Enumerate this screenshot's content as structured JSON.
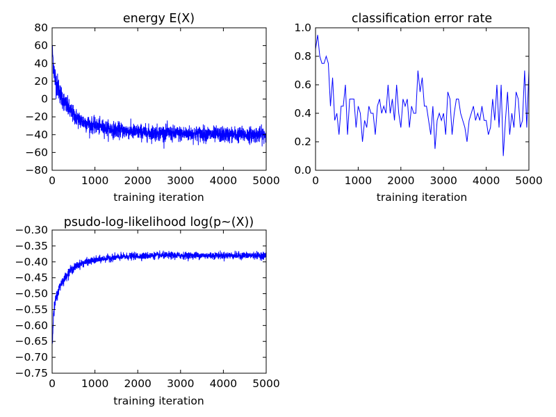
{
  "figure": {
    "line_color": "#0000ff",
    "background": "#ffffff"
  },
  "chart_data": [
    {
      "type": "line",
      "title": "energy E(X)",
      "xlabel": "training iteration",
      "ylabel": "",
      "xlim": [
        0,
        5000
      ],
      "ylim": [
        -80,
        80
      ],
      "xticks": [
        0,
        1000,
        2000,
        3000,
        4000,
        5000
      ],
      "yticks": [
        -80,
        -60,
        -40,
        -20,
        0,
        20,
        40,
        60,
        80
      ],
      "xtick_labels": [
        "0",
        "1000",
        "2000",
        "3000",
        "4000",
        "5000"
      ],
      "ytick_labels": [
        "−80",
        "−60",
        "−40",
        "−20",
        "0",
        "20",
        "40",
        "60",
        "80"
      ],
      "grid": false,
      "series": [
        {
          "color": "#0000ff",
          "x": [
            0,
            25,
            50,
            75,
            100,
            150,
            200,
            300,
            400,
            500,
            600,
            700,
            800,
            900,
            1000,
            1100,
            1200,
            1300,
            1400,
            1500,
            1600,
            1700,
            1800,
            1900,
            2000,
            2100,
            2200,
            2300,
            2400,
            2500,
            2600,
            2700,
            2800,
            2900,
            3000,
            3100,
            3200,
            3300,
            3400,
            3500,
            3600,
            3700,
            3800,
            3900,
            4000,
            4100,
            4200,
            4300,
            4400,
            4500,
            4600,
            4700,
            4800,
            4900,
            5000
          ],
          "y": [
            58,
            42,
            30,
            22,
            18,
            12,
            5,
            -5,
            -12,
            -18,
            -22,
            -25,
            -27,
            -29,
            -30,
            -31,
            -32,
            -33,
            -34,
            -35,
            -35,
            -36,
            -36,
            -37,
            -37,
            -37,
            -38,
            -38,
            -38,
            -38,
            -38,
            -38,
            -39,
            -39,
            -39,
            -39,
            -39,
            -39,
            -39,
            -39,
            -39,
            -40,
            -40,
            -40,
            -40,
            -40,
            -40,
            -40,
            -40,
            -40,
            -40,
            -40,
            -40,
            -40,
            -40
          ],
          "noise": [
            8,
            12,
            14,
            14,
            13,
            12,
            11,
            10,
            10,
            9,
            9,
            9,
            9,
            8,
            8,
            8,
            8,
            8,
            8,
            8,
            8,
            8,
            8,
            8,
            8,
            8,
            8,
            8,
            8,
            8,
            8,
            8,
            8,
            8,
            8,
            8,
            8,
            8,
            8,
            8,
            8,
            8,
            8,
            8,
            8,
            8,
            8,
            8,
            8,
            8,
            8,
            8,
            8,
            8,
            8
          ]
        }
      ]
    },
    {
      "type": "line",
      "title": "classification error rate",
      "xlabel": "training iteration",
      "ylabel": "",
      "xlim": [
        0,
        5000
      ],
      "ylim": [
        0.0,
        1.0
      ],
      "xticks": [
        0,
        1000,
        2000,
        3000,
        4000,
        5000
      ],
      "yticks": [
        0.0,
        0.2,
        0.4,
        0.6,
        0.8,
        1.0
      ],
      "xtick_labels": [
        "0",
        "1000",
        "2000",
        "3000",
        "4000",
        "5000"
      ],
      "ytick_labels": [
        "0.0",
        "0.2",
        "0.4",
        "0.6",
        "0.8",
        "1.0"
      ],
      "grid": false,
      "series": [
        {
          "color": "#0000ff",
          "x": [
            0,
            50,
            100,
            150,
            200,
            250,
            300,
            350,
            400,
            450,
            500,
            550,
            600,
            650,
            700,
            750,
            800,
            850,
            900,
            950,
            1000,
            1050,
            1100,
            1150,
            1200,
            1250,
            1300,
            1350,
            1400,
            1450,
            1500,
            1550,
            1600,
            1650,
            1700,
            1750,
            1800,
            1850,
            1900,
            1950,
            2000,
            2050,
            2100,
            2150,
            2200,
            2250,
            2300,
            2350,
            2400,
            2450,
            2500,
            2550,
            2600,
            2650,
            2700,
            2750,
            2800,
            2850,
            2900,
            2950,
            3000,
            3050,
            3100,
            3150,
            3200,
            3250,
            3300,
            3350,
            3400,
            3450,
            3500,
            3550,
            3600,
            3650,
            3700,
            3750,
            3800,
            3850,
            3900,
            3950,
            4000,
            4050,
            4100,
            4150,
            4200,
            4250,
            4300,
            4350,
            4400,
            4450,
            4500,
            4550,
            4600,
            4650,
            4700,
            4750,
            4800,
            4850,
            4900,
            4950,
            5000
          ],
          "y": [
            0.85,
            0.95,
            0.8,
            0.75,
            0.75,
            0.8,
            0.75,
            0.45,
            0.65,
            0.35,
            0.4,
            0.25,
            0.45,
            0.45,
            0.6,
            0.25,
            0.5,
            0.5,
            0.5,
            0.3,
            0.45,
            0.4,
            0.2,
            0.35,
            0.3,
            0.45,
            0.4,
            0.4,
            0.25,
            0.45,
            0.5,
            0.4,
            0.45,
            0.4,
            0.6,
            0.4,
            0.5,
            0.35,
            0.6,
            0.4,
            0.3,
            0.5,
            0.45,
            0.5,
            0.3,
            0.45,
            0.4,
            0.4,
            0.7,
            0.55,
            0.65,
            0.45,
            0.45,
            0.35,
            0.25,
            0.45,
            0.15,
            0.35,
            0.4,
            0.35,
            0.4,
            0.25,
            0.55,
            0.5,
            0.25,
            0.4,
            0.5,
            0.5,
            0.4,
            0.35,
            0.3,
            0.2,
            0.35,
            0.4,
            0.45,
            0.35,
            0.4,
            0.35,
            0.45,
            0.35,
            0.35,
            0.25,
            0.3,
            0.5,
            0.35,
            0.6,
            0.3,
            0.6,
            0.1,
            0.35,
            0.55,
            0.25,
            0.4,
            0.3,
            0.55,
            0.5,
            0.3,
            0.35,
            0.7,
            0.3,
            0.7
          ],
          "noise": []
        }
      ]
    },
    {
      "type": "line",
      "title": "psudo-log-likelihood log(p~(X))",
      "xlabel": "training iteration",
      "ylabel": "",
      "xlim": [
        0,
        5000
      ],
      "ylim": [
        -0.75,
        -0.3
      ],
      "xticks": [
        0,
        1000,
        2000,
        3000,
        4000,
        5000
      ],
      "yticks": [
        -0.75,
        -0.7,
        -0.65,
        -0.6,
        -0.55,
        -0.5,
        -0.45,
        -0.4,
        -0.35,
        -0.3
      ],
      "xtick_labels": [
        "0",
        "1000",
        "2000",
        "3000",
        "4000",
        "5000"
      ],
      "ytick_labels": [
        "−0.75",
        "−0.70",
        "−0.65",
        "−0.60",
        "−0.55",
        "−0.50",
        "−0.45",
        "−0.40",
        "−0.35",
        "−0.30"
      ],
      "grid": false,
      "series": [
        {
          "color": "#0000ff",
          "x": [
            0,
            20,
            40,
            70,
            100,
            150,
            200,
            300,
            400,
            500,
            600,
            700,
            800,
            900,
            1000,
            1200,
            1400,
            1600,
            1800,
            2000,
            2200,
            2400,
            2600,
            2800,
            3000,
            3200,
            3400,
            3600,
            3800,
            4000,
            4200,
            4400,
            4600,
            4800,
            5000
          ],
          "y": [
            -0.66,
            -0.6,
            -0.56,
            -0.53,
            -0.51,
            -0.49,
            -0.47,
            -0.45,
            -0.43,
            -0.42,
            -0.41,
            -0.405,
            -0.4,
            -0.398,
            -0.395,
            -0.39,
            -0.387,
            -0.385,
            -0.383,
            -0.382,
            -0.381,
            -0.38,
            -0.38,
            -0.38,
            -0.38,
            -0.38,
            -0.38,
            -0.38,
            -0.38,
            -0.38,
            -0.38,
            -0.38,
            -0.38,
            -0.38,
            -0.38
          ],
          "noise": [
            0.01,
            0.02,
            0.02,
            0.02,
            0.015,
            0.015,
            0.014,
            0.013,
            0.012,
            0.012,
            0.011,
            0.011,
            0.01,
            0.01,
            0.01,
            0.01,
            0.01,
            0.01,
            0.01,
            0.01,
            0.01,
            0.01,
            0.01,
            0.01,
            0.01,
            0.01,
            0.01,
            0.01,
            0.01,
            0.01,
            0.01,
            0.01,
            0.01,
            0.01,
            0.01
          ]
        }
      ]
    }
  ]
}
